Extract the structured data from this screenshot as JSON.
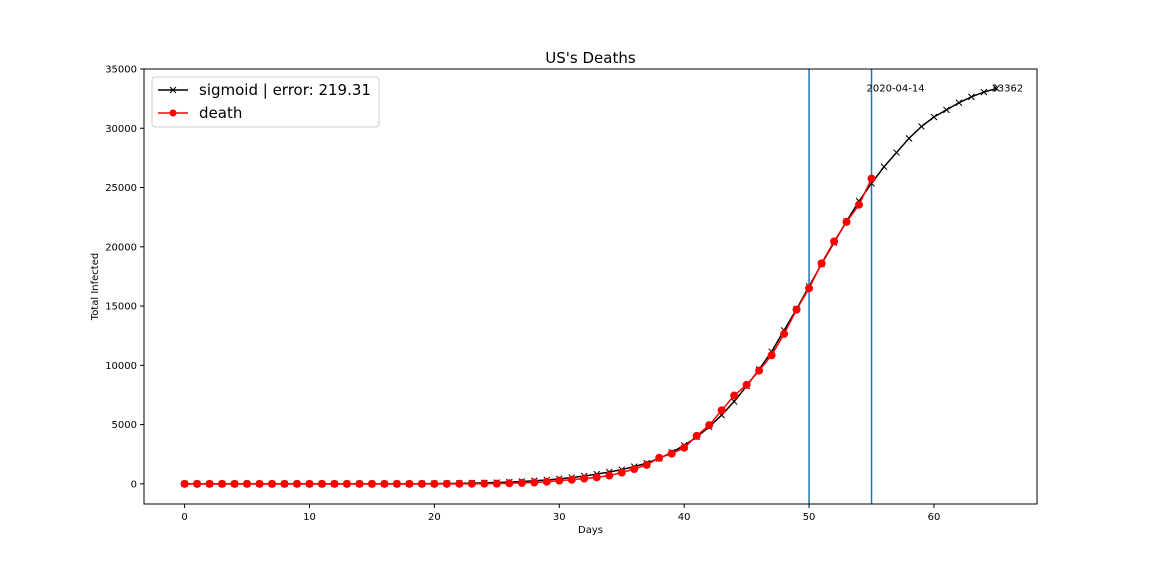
{
  "chart_data": {
    "type": "line",
    "title": "US's Deaths",
    "xlabel": "Days",
    "ylabel": "Total Infected",
    "xlim": [
      -3.25,
      68.25
    ],
    "ylim": [
      -1700,
      35000
    ],
    "xticks": [
      0,
      10,
      20,
      30,
      40,
      50,
      60
    ],
    "yticks": [
      0,
      5000,
      10000,
      15000,
      20000,
      25000,
      30000,
      35000
    ],
    "grid": false,
    "legend_position": "top-left",
    "series": [
      {
        "name": "sigmoid | error: 219.31",
        "color": "#000000",
        "marker": "x",
        "x": [
          0,
          1,
          2,
          3,
          4,
          5,
          6,
          7,
          8,
          9,
          10,
          11,
          12,
          13,
          14,
          15,
          16,
          17,
          18,
          19,
          20,
          21,
          22,
          23,
          24,
          25,
          26,
          27,
          28,
          29,
          30,
          31,
          32,
          33,
          34,
          35,
          36,
          37,
          38,
          39,
          40,
          41,
          42,
          43,
          44,
          45,
          46,
          47,
          48,
          49,
          50,
          51,
          52,
          53,
          54,
          55,
          56,
          57,
          58,
          59,
          60,
          61,
          62,
          63,
          64,
          65
        ],
        "y": [
          0,
          0,
          0,
          0,
          0,
          0,
          0,
          0,
          0,
          0,
          0,
          0,
          0,
          0,
          0,
          0,
          0,
          0,
          0,
          10,
          20,
          30,
          40,
          60,
          80,
          110,
          150,
          200,
          260,
          330,
          420,
          530,
          660,
          820,
          1000,
          1200,
          1450,
          1750,
          2150,
          2650,
          3250,
          3950,
          4800,
          5800,
          6950,
          8250,
          9650,
          11150,
          12950,
          14750,
          16650,
          18550,
          20350,
          22150,
          23850,
          25350,
          26750,
          27950,
          29150,
          30150,
          30950,
          31550,
          32150,
          32650,
          33050,
          33362
        ]
      },
      {
        "name": "death",
        "color": "#ff0000",
        "marker": "o",
        "x": [
          0,
          1,
          2,
          3,
          4,
          5,
          6,
          7,
          8,
          9,
          10,
          11,
          12,
          13,
          14,
          15,
          16,
          17,
          18,
          19,
          20,
          21,
          22,
          23,
          24,
          25,
          26,
          27,
          28,
          29,
          30,
          31,
          32,
          33,
          34,
          35,
          36,
          37,
          38,
          39,
          40,
          41,
          42,
          43,
          44,
          45,
          46,
          47,
          48,
          49,
          50,
          51,
          52,
          53,
          54,
          55
        ],
        "y": [
          0,
          0,
          0,
          0,
          0,
          0,
          0,
          0,
          0,
          0,
          0,
          0,
          0,
          0,
          0,
          0,
          0,
          0,
          0,
          0,
          0,
          0,
          5,
          10,
          15,
          20,
          50,
          80,
          110,
          180,
          270,
          350,
          450,
          550,
          700,
          950,
          1250,
          1600,
          2200,
          2550,
          3050,
          4050,
          4950,
          6200,
          7450,
          8350,
          9550,
          10850,
          12650,
          14700,
          16500,
          18600,
          20450,
          22100,
          23550,
          25750
        ]
      }
    ],
    "vlines": [
      {
        "x": 50,
        "color": "#1f77b4"
      },
      {
        "x": 55,
        "color": "#1f77b4"
      }
    ],
    "annotations": [
      {
        "text": "2020-04-14",
        "x": 55,
        "y": 33362
      },
      {
        "text": "33362",
        "x": 65,
        "y": 33362
      }
    ]
  }
}
